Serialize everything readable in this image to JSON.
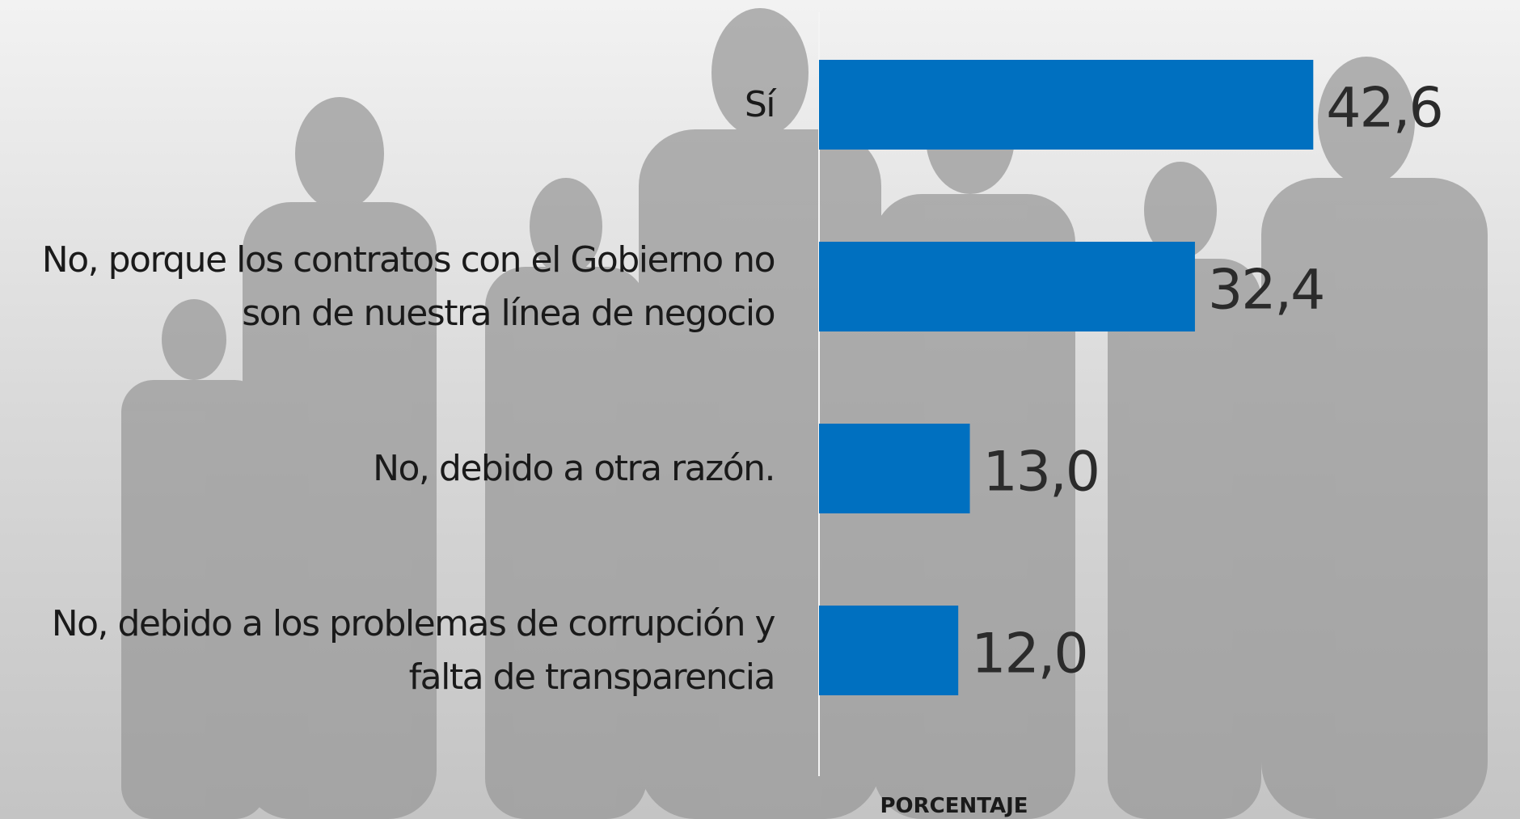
{
  "chart_data": {
    "type": "hbar",
    "categories": [
      "Sí",
      "No, porque los contratos con el Gobierno no son de nuestra línea de negocio",
      "No, debido a otra razón.",
      "No, debido a los problemas de corrupción y falta de transparencia"
    ],
    "values": [
      42.6,
      32.4,
      13.0,
      12.0
    ],
    "value_labels": [
      "42,6",
      "32,4",
      "13,0",
      "12,0"
    ],
    "color": "#0070c0",
    "xlim": [
      0,
      60
    ],
    "x_label": "PORCENTAJE"
  }
}
